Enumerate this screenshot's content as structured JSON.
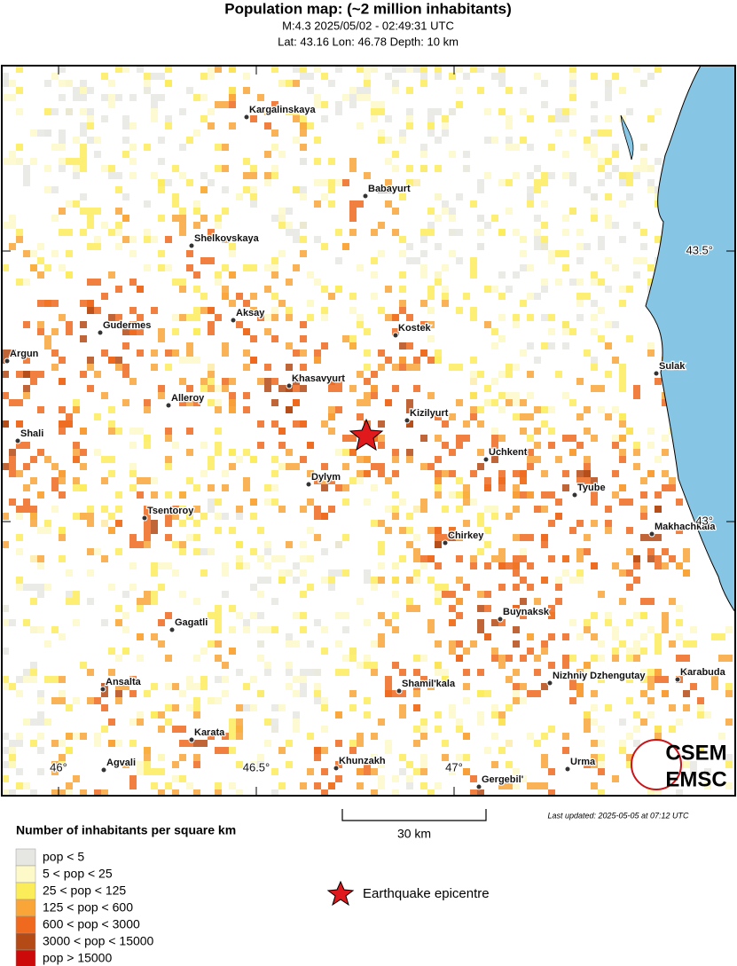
{
  "header": {
    "title": "Population map: (~2 million inhabitants)",
    "subtitle": "M:4.3 2025/05/02 - 02:49:31 UTC",
    "location": "Lat: 43.16 Lon: 46.78 Depth: 10 km"
  },
  "map": {
    "cities": [
      "Kargalinskaya",
      "Babayurt",
      "Shelkovskaya",
      "Aksay",
      "Gudermes",
      "Kostek",
      "Argun",
      "Sulak",
      "Khasavyurt",
      "Alleroy",
      "Kizilyurt",
      "Shali",
      "Uchkent",
      "Dylym",
      "Tyube",
      "Tsentoroy",
      "Makhachkala",
      "Chirkey",
      "Buynaksk",
      "Gagatli",
      "Nizhniy Dzhengutay",
      "Karabuda",
      "Ansalta",
      "Shamil'kala",
      "Karata",
      "Agvali",
      "Khunzakh",
      "Urma",
      "Gergebil'"
    ],
    "lat_labels": [
      "43.5°",
      "43°"
    ],
    "lon_labels": [
      "46°",
      "46.5°",
      "47°"
    ],
    "logo": [
      "CSEM",
      "EMSC"
    ]
  },
  "scale": {
    "label": "30 km"
  },
  "last_updated": "Last updated: 2025-05-05 at 07:12 UTC",
  "legend": {
    "title": "Number of inhabitants per square km",
    "items": [
      {
        "label": "pop < 5",
        "color": "#e6e6e2"
      },
      {
        "label": "5 < pop < 25",
        "color": "#fdf9c9"
      },
      {
        "label": "25 < pop < 125",
        "color": "#fbec5a"
      },
      {
        "label": "125 < pop < 600",
        "color": "#f9a538"
      },
      {
        "label": "600 < pop < 3000",
        "color": "#ef6a1e"
      },
      {
        "label": "3000 < pop < 15000",
        "color": "#b44a15"
      },
      {
        "label": "pop > 15000",
        "color": "#cc0a0a"
      }
    ],
    "epicentre": "Earthquake epicentre"
  }
}
